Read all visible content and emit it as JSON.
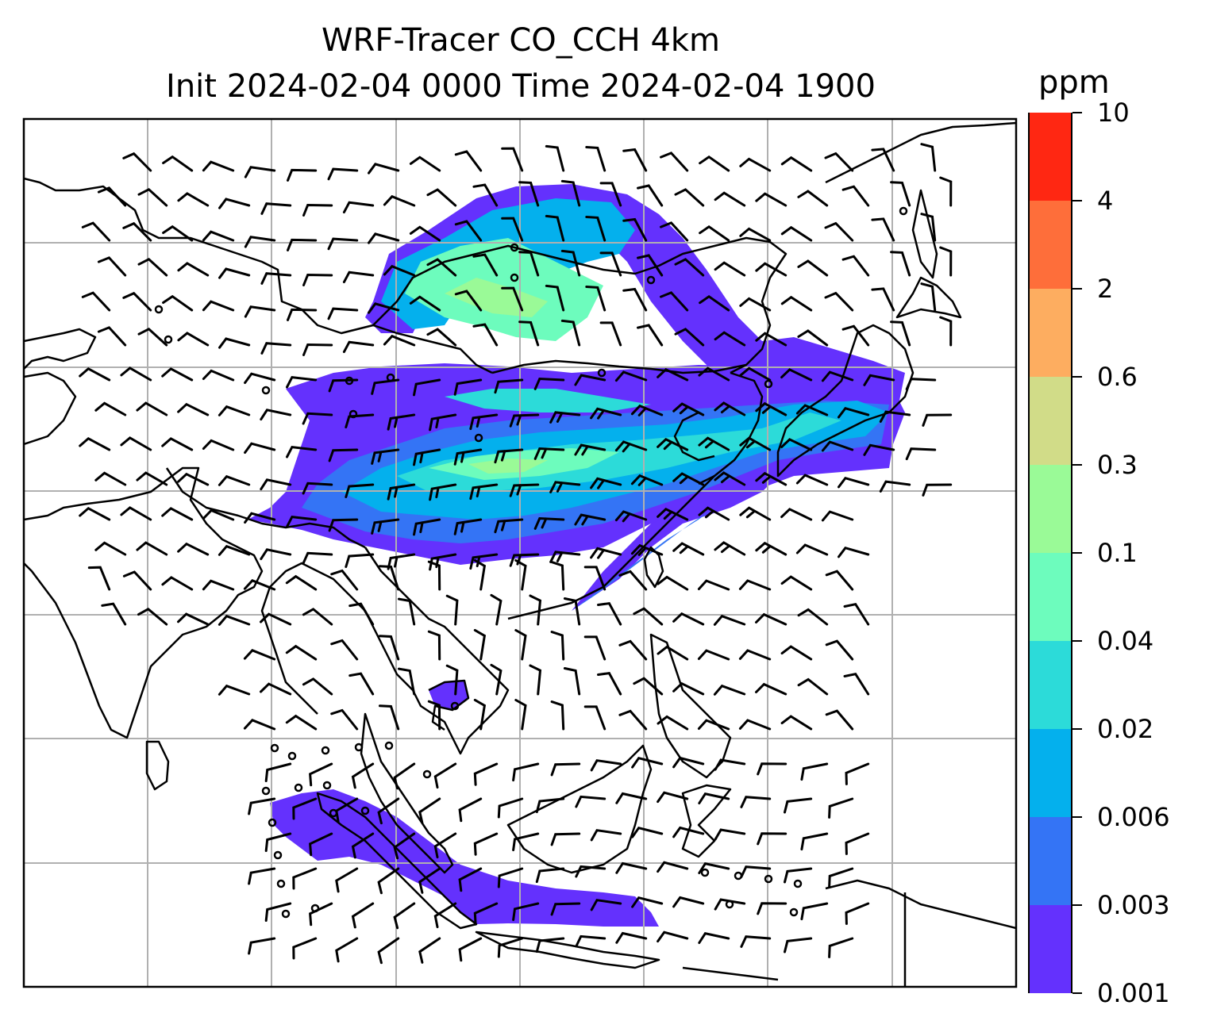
{
  "title": {
    "line1": "WRF-Tracer CO_CCH 4km",
    "line2": "Init 2024-02-04 0000 Time 2024-02-04 1900"
  },
  "colorbar": {
    "unit": "ppm",
    "levels": [
      "0.001",
      "0.003",
      "0.006",
      "0.02",
      "0.04",
      "0.1",
      "0.3",
      "0.6",
      "2",
      "4",
      "10"
    ],
    "colors": [
      "#6431fd",
      "#3474f5",
      "#04b0ed",
      "#2cdbd9",
      "#6dfcbd",
      "#9afa97",
      "#d1dc88",
      "#fdad60",
      "#fe6e3a",
      "#ff2712"
    ]
  },
  "map": {
    "gridlines": true,
    "coastline_color": "#000000",
    "gridline_color": "#b0b0b0",
    "wind_barb_color": "#000000"
  }
}
